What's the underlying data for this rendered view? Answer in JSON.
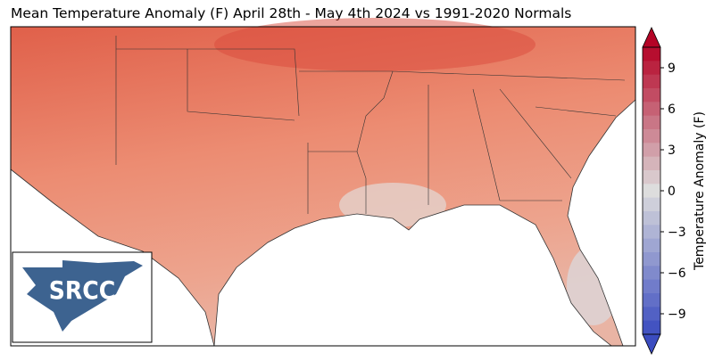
{
  "title": "Mean Temperature Anomaly (F) April 28th - May 4th 2024 vs 1991-2020 Normals",
  "colorbar": {
    "label": "Temperature Anomaly (F)",
    "lim": [
      -10.5,
      10.5
    ],
    "ticks": [
      9,
      6,
      3,
      0,
      {
        "value": -3,
        "label": "−3"
      },
      {
        "value": -6,
        "label": "−6"
      },
      {
        "value": -9,
        "label": "−9"
      }
    ]
  },
  "logo": {
    "text": "SRCC"
  }
}
